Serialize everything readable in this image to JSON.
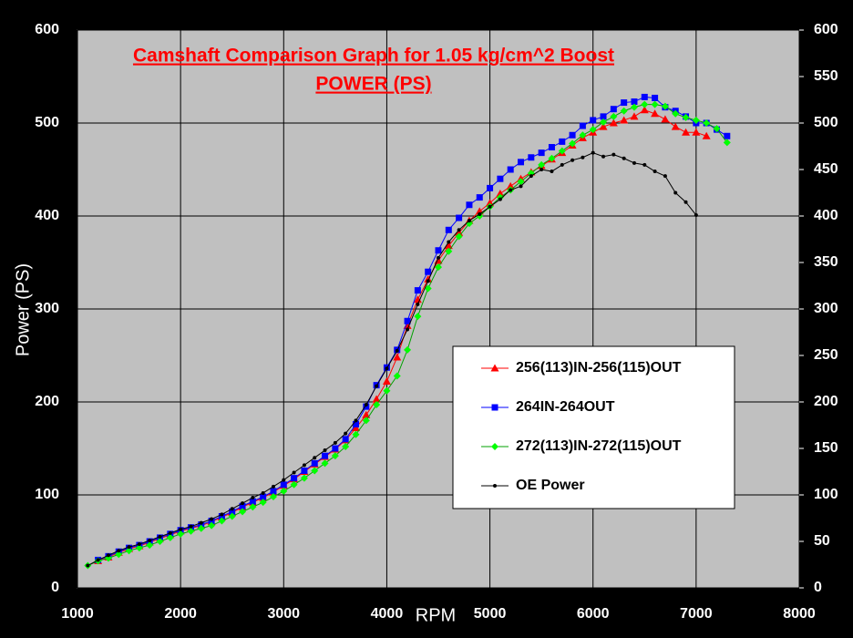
{
  "chart_data": {
    "type": "line",
    "title": "Camshaft Comparison Graph for 1.05 kg/cm^2 Boost",
    "subtitle": "POWER (PS)",
    "xlabel": "RPM",
    "ylabel": "Power (PS)",
    "x": [
      1100,
      1200,
      1300,
      1400,
      1500,
      1600,
      1700,
      1800,
      1900,
      2000,
      2100,
      2200,
      2300,
      2400,
      2500,
      2600,
      2700,
      2800,
      2900,
      3000,
      3100,
      3200,
      3300,
      3400,
      3500,
      3600,
      3700,
      3800,
      3900,
      4000,
      4100,
      4200,
      4300,
      4400,
      4500,
      4600,
      4700,
      4800,
      4900,
      5000,
      5100,
      5200,
      5300,
      5400,
      5500,
      5600,
      5700,
      5800,
      5900,
      6000,
      6100,
      6200,
      6300,
      6400,
      6500,
      6600,
      6700,
      6800,
      6900,
      7000,
      7100,
      7200,
      7300
    ],
    "series": [
      {
        "name": "256(113)IN-256(115)OUT",
        "color": "#ff0000",
        "marker": "triangle",
        "values": [
          null,
          29,
          33,
          38,
          42,
          45,
          49,
          53,
          57,
          61,
          64,
          67,
          71,
          76,
          81,
          87,
          92,
          97,
          103,
          110,
          117,
          125,
          133,
          141,
          149,
          159,
          172,
          186,
          203,
          222,
          248,
          282,
          310,
          332,
          352,
          368,
          382,
          395,
          405,
          414,
          424,
          432,
          440,
          447,
          454,
          461,
          468,
          476,
          484,
          490,
          496,
          500,
          503,
          507,
          514,
          510,
          504,
          496,
          490,
          490,
          486,
          null,
          null
        ]
      },
      {
        "name": "264IN-264OUT",
        "color": "#0000ff",
        "marker": "square",
        "values": [
          null,
          30,
          34,
          39,
          43,
          46,
          50,
          54,
          58,
          62,
          65,
          68,
          72,
          77,
          82,
          88,
          93,
          98,
          104,
          111,
          118,
          126,
          134,
          142,
          150,
          160,
          176,
          195,
          218,
          237,
          256,
          287,
          320,
          340,
          363,
          385,
          398,
          412,
          420,
          430,
          440,
          450,
          458,
          463,
          468,
          474,
          480,
          487,
          497,
          503,
          507,
          515,
          522,
          523,
          528,
          527,
          517,
          513,
          507,
          500,
          500,
          493,
          486
        ]
      },
      {
        "name": "272(113)IN-272(115)OUT",
        "color": "#00ff00",
        "marker": "diamond",
        "values": [
          24,
          29,
          32,
          36,
          40,
          43,
          46,
          50,
          54,
          58,
          61,
          64,
          67,
          72,
          77,
          82,
          87,
          92,
          98,
          104,
          111,
          118,
          126,
          134,
          142,
          152,
          165,
          180,
          197,
          212,
          228,
          256,
          292,
          322,
          345,
          362,
          378,
          392,
          400,
          410,
          420,
          428,
          437,
          446,
          455,
          462,
          470,
          478,
          487,
          493,
          501,
          507,
          513,
          517,
          520,
          520,
          518,
          510,
          506,
          503,
          500,
          494,
          479
        ]
      },
      {
        "name": "OE Power",
        "color": "#000000",
        "marker": "circle",
        "values": [
          24,
          30,
          35,
          40,
          44,
          47,
          51,
          55,
          59,
          63,
          66,
          70,
          74,
          79,
          85,
          91,
          97,
          102,
          109,
          116,
          124,
          132,
          140,
          148,
          156,
          166,
          180,
          197,
          217,
          236,
          255,
          278,
          305,
          330,
          355,
          372,
          385,
          395,
          402,
          410,
          418,
          428,
          432,
          443,
          450,
          448,
          455,
          460,
          463,
          468,
          464,
          466,
          462,
          457,
          455,
          448,
          443,
          425,
          415,
          401,
          null,
          null,
          null
        ]
      }
    ],
    "xlim": [
      1000,
      8000
    ],
    "xticks": [
      1000,
      2000,
      3000,
      4000,
      5000,
      6000,
      7000,
      8000
    ],
    "ylim": [
      0,
      600
    ],
    "yticks": [
      0,
      100,
      200,
      300,
      400,
      500,
      600
    ],
    "y2lim": [
      0,
      600
    ],
    "y2ticks": [
      0,
      50,
      100,
      150,
      200,
      250,
      300,
      350,
      400,
      450,
      500,
      550,
      600
    ],
    "grid": true
  }
}
